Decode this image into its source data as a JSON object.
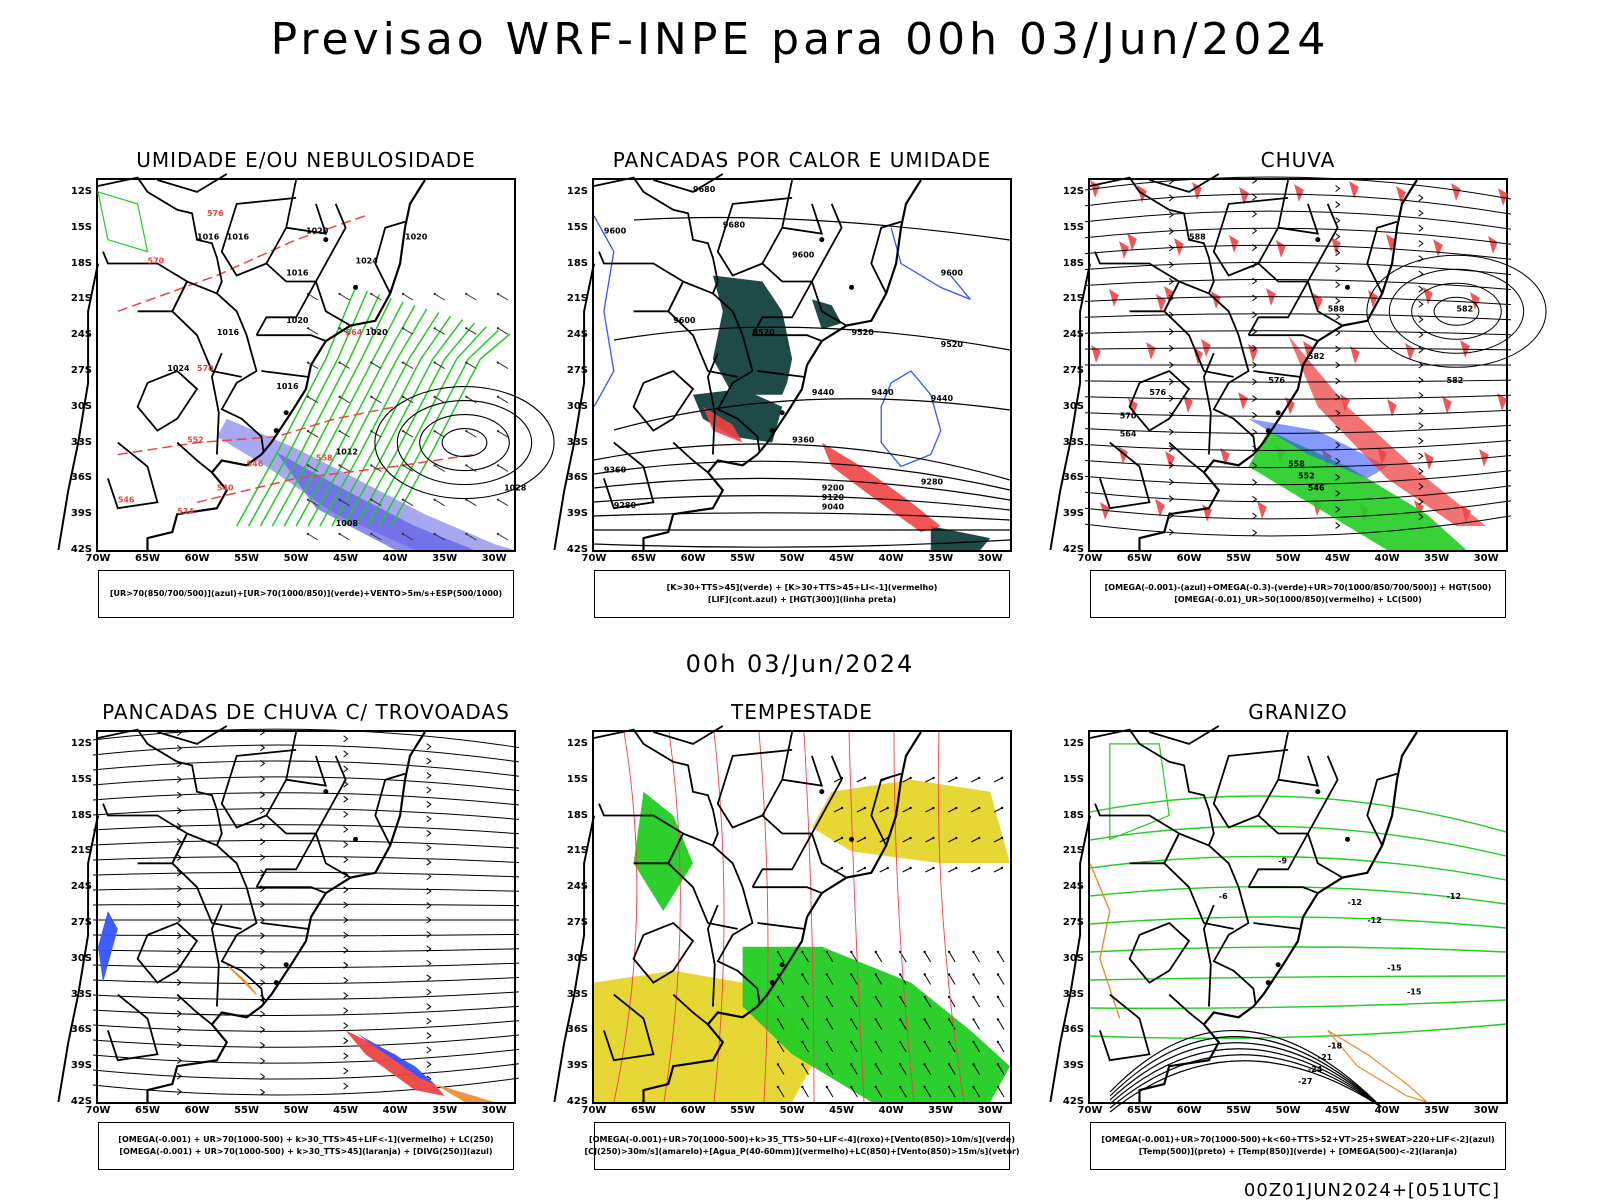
{
  "main_title": "Previsao WRF-INPE  para 00h 03/Jun/2024",
  "mid_date": "00h 03/Jun/2024",
  "footer": "00Z01JUN2024+[051UTC]",
  "lat_ticks": [
    "12S",
    "15S",
    "18S",
    "21S",
    "24S",
    "27S",
    "30S",
    "33S",
    "36S",
    "39S",
    "42S"
  ],
  "lon_ticks": [
    "70W",
    "65W",
    "60W",
    "55W",
    "50W",
    "45W",
    "40W",
    "35W",
    "30W"
  ],
  "colors": {
    "green": "#22cc22",
    "red": "#ee4444",
    "blue": "#3355ff",
    "purple": "#9999ee",
    "darkteal": "#1e4a48",
    "yellow": "#e6d52a",
    "orange": "#f08a2a"
  },
  "panels": [
    {
      "title": "UMIDADE E/OU NEBULOSIDADE",
      "legend": [
        "[UR>70(850/700/500)](azul)+[UR>70(1000/850)](verde)+VENTO>5m/s+ESP(500/1000)"
      ],
      "labels": [
        "1016",
        "1016",
        "1016",
        "1020",
        "1020",
        "1024",
        "1020",
        "1020",
        "1016",
        "1024",
        "1016",
        "1012",
        "1028",
        "1008",
        "576",
        "570",
        "570",
        "564",
        "558",
        "552",
        "546",
        "540",
        "534",
        "546"
      ]
    },
    {
      "title": "PANCADAS POR CALOR E UMIDADE",
      "legend": [
        "[K>30+TTS>45](verde) + [K>30+TTS>45+LI<-1](vermelho)",
        "[LIF](cont.azul) + [HGT(300)](linha preta)"
      ],
      "labels": [
        "9680",
        "9680",
        "9600",
        "9600",
        "9600",
        "9600",
        "9520",
        "9520",
        "9520",
        "9440",
        "9440",
        "9440",
        "9360",
        "9360",
        "9200",
        "9120",
        "9040",
        "9280",
        "9280"
      ]
    },
    {
      "title": "CHUVA",
      "legend": [
        "[OMEGA(-0.001)-(azul)+OMEGA(-0.3)-(verde)+UR>70(1000/850/700/500)] + HGT(500)",
        "[OMEGA(-0.01)_UR>50(1000/850)(vermelho) + LC(500)"
      ],
      "labels": [
        "588",
        "588",
        "582",
        "582",
        "576",
        "576",
        "570",
        "564",
        "558",
        "552",
        "546",
        "582"
      ]
    },
    {
      "title": "PANCADAS DE CHUVA C/ TROVOADAS",
      "legend": [
        "[OMEGA(-0.001) + UR>70(1000-500) + k>30_TTS>45+LIF<-1](vermelho) + LC(250)",
        "[OMEGA(-0.001) + UR>70(1000-500) + k>30_TTS>45](laranja) + [DIVG(250)](azul)"
      ],
      "labels": []
    },
    {
      "title": "TEMPESTADE",
      "legend": [
        "[OMEGA(-0.001)+UR>70(1000-500)+k>35_TTS>50+LIF<-4](roxo)+[Vento(850)>10m/s](verde)",
        "[CJ(250)>30m/s](amarelo)+[Agua_P(40-60mm)](vermelho)+LC(850)+[Vento(850)>15m/s](vetor)"
      ],
      "labels": []
    },
    {
      "title": "GRANIZO",
      "legend": [
        "[OMEGA(-0.001)+UR>70(1000-500)+k<60+TTS>52+VT>25+SWEAT>220+LIF<-2](azul)",
        "[Temp(500)](preto) + [Temp(850)](verde) + [OMEGA(500)<-2](laranja)"
      ],
      "labels": [
        "-6",
        "-9",
        "-12",
        "-15",
        "-12",
        "-18",
        "-21",
        "-24",
        "-27",
        "-15",
        "-12"
      ]
    }
  ]
}
